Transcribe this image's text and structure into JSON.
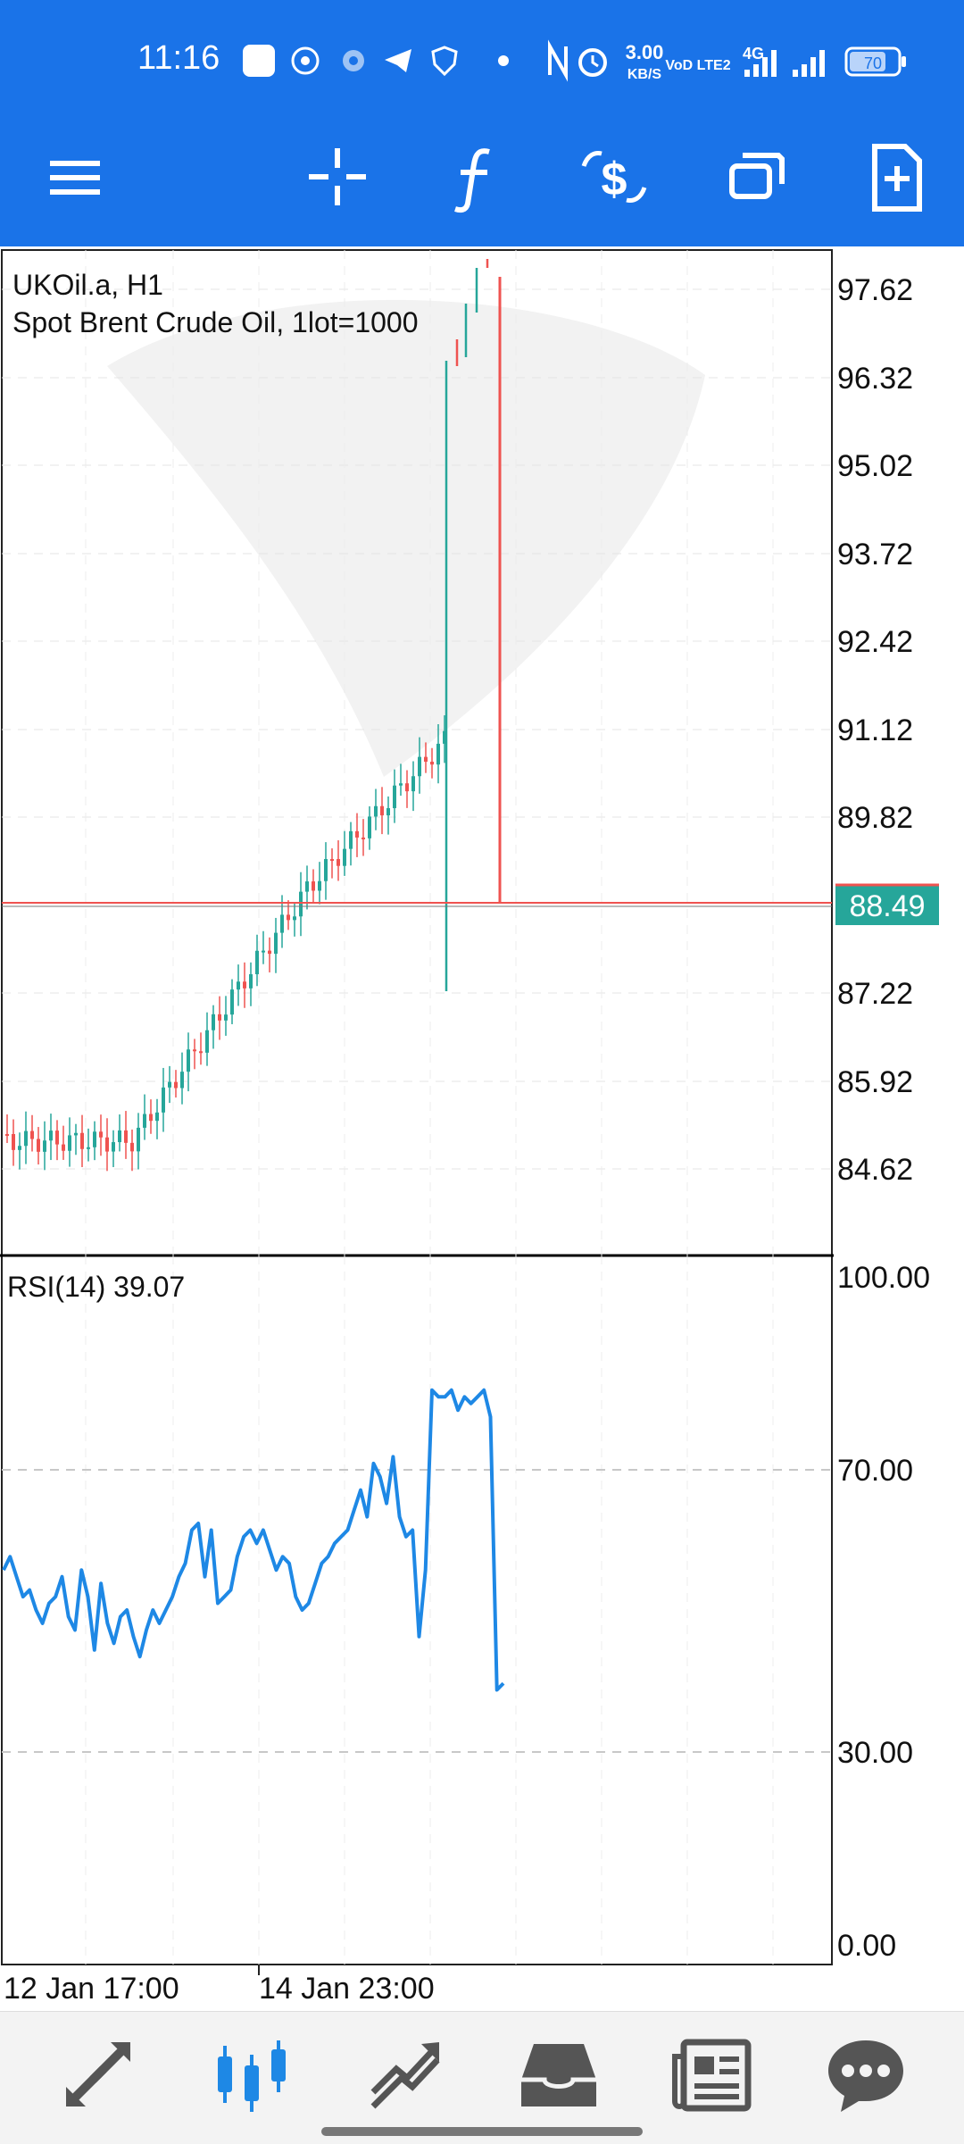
{
  "status_bar": {
    "time": "11:16",
    "net_speed_value": "3.00",
    "net_speed_unit": "KB/S",
    "volte": "VoD LTE2",
    "network": "4G",
    "battery": "70",
    "icons": [
      "zalo-icon",
      "whatsapp-icon",
      "gear-icon",
      "telegram-icon",
      "shield-icon",
      "dot-icon",
      "nfc-icon",
      "alarm-icon",
      "signal-icon",
      "signal-icon",
      "battery-icon"
    ]
  },
  "toolbar": {
    "buttons": [
      "menu-icon",
      "crosshair-icon",
      "function-icon",
      "dollar-exchange-icon",
      "windows-icon",
      "new-document-icon"
    ]
  },
  "chart_main": {
    "symbol": "UKOil.a, H1",
    "description": "Spot Brent Crude Oil, 1lot=1000",
    "price_labels": [
      "97.62",
      "96.32",
      "95.02",
      "93.72",
      "92.42",
      "91.12",
      "89.82",
      "87.22",
      "85.92",
      "84.62"
    ],
    "current_price": "88.49",
    "colors": {
      "bull": "#26a69a",
      "bear": "#ef5350",
      "line": "#ef5350",
      "badge": "#26a69a"
    }
  },
  "chart_rsi": {
    "label": "RSI(14) 39.07",
    "levels": [
      "100.00",
      "70.00",
      "30.00",
      "0.00"
    ],
    "color": "#1e88e5"
  },
  "time_axis": {
    "labels": [
      "12 Jan 17:00",
      "14 Jan 23:00"
    ]
  },
  "chart_data": {
    "type": "line",
    "title": "",
    "series": [
      {
        "name": "RSI(14)",
        "values": [
          56,
          58,
          55,
          52,
          53,
          50,
          48,
          51,
          52,
          55,
          49,
          47,
          56,
          52,
          44,
          54,
          48,
          45,
          49,
          50,
          46,
          43,
          47,
          50,
          48,
          50,
          52,
          55,
          57,
          62,
          63,
          55,
          62,
          51,
          52,
          53,
          58,
          61,
          62,
          60,
          62,
          59,
          56,
          58,
          57,
          52,
          50,
          51,
          54,
          57,
          58,
          60,
          61,
          62,
          65,
          68,
          64,
          72,
          70,
          66,
          73,
          64,
          61,
          62,
          46,
          56,
          83,
          82,
          82,
          83,
          80,
          82,
          81,
          82,
          83,
          79,
          38,
          39
        ]
      }
    ],
    "ylim": [
      0,
      100
    ],
    "levels": [
      30,
      70
    ],
    "xlabel": "",
    "ylabel": ""
  }
}
